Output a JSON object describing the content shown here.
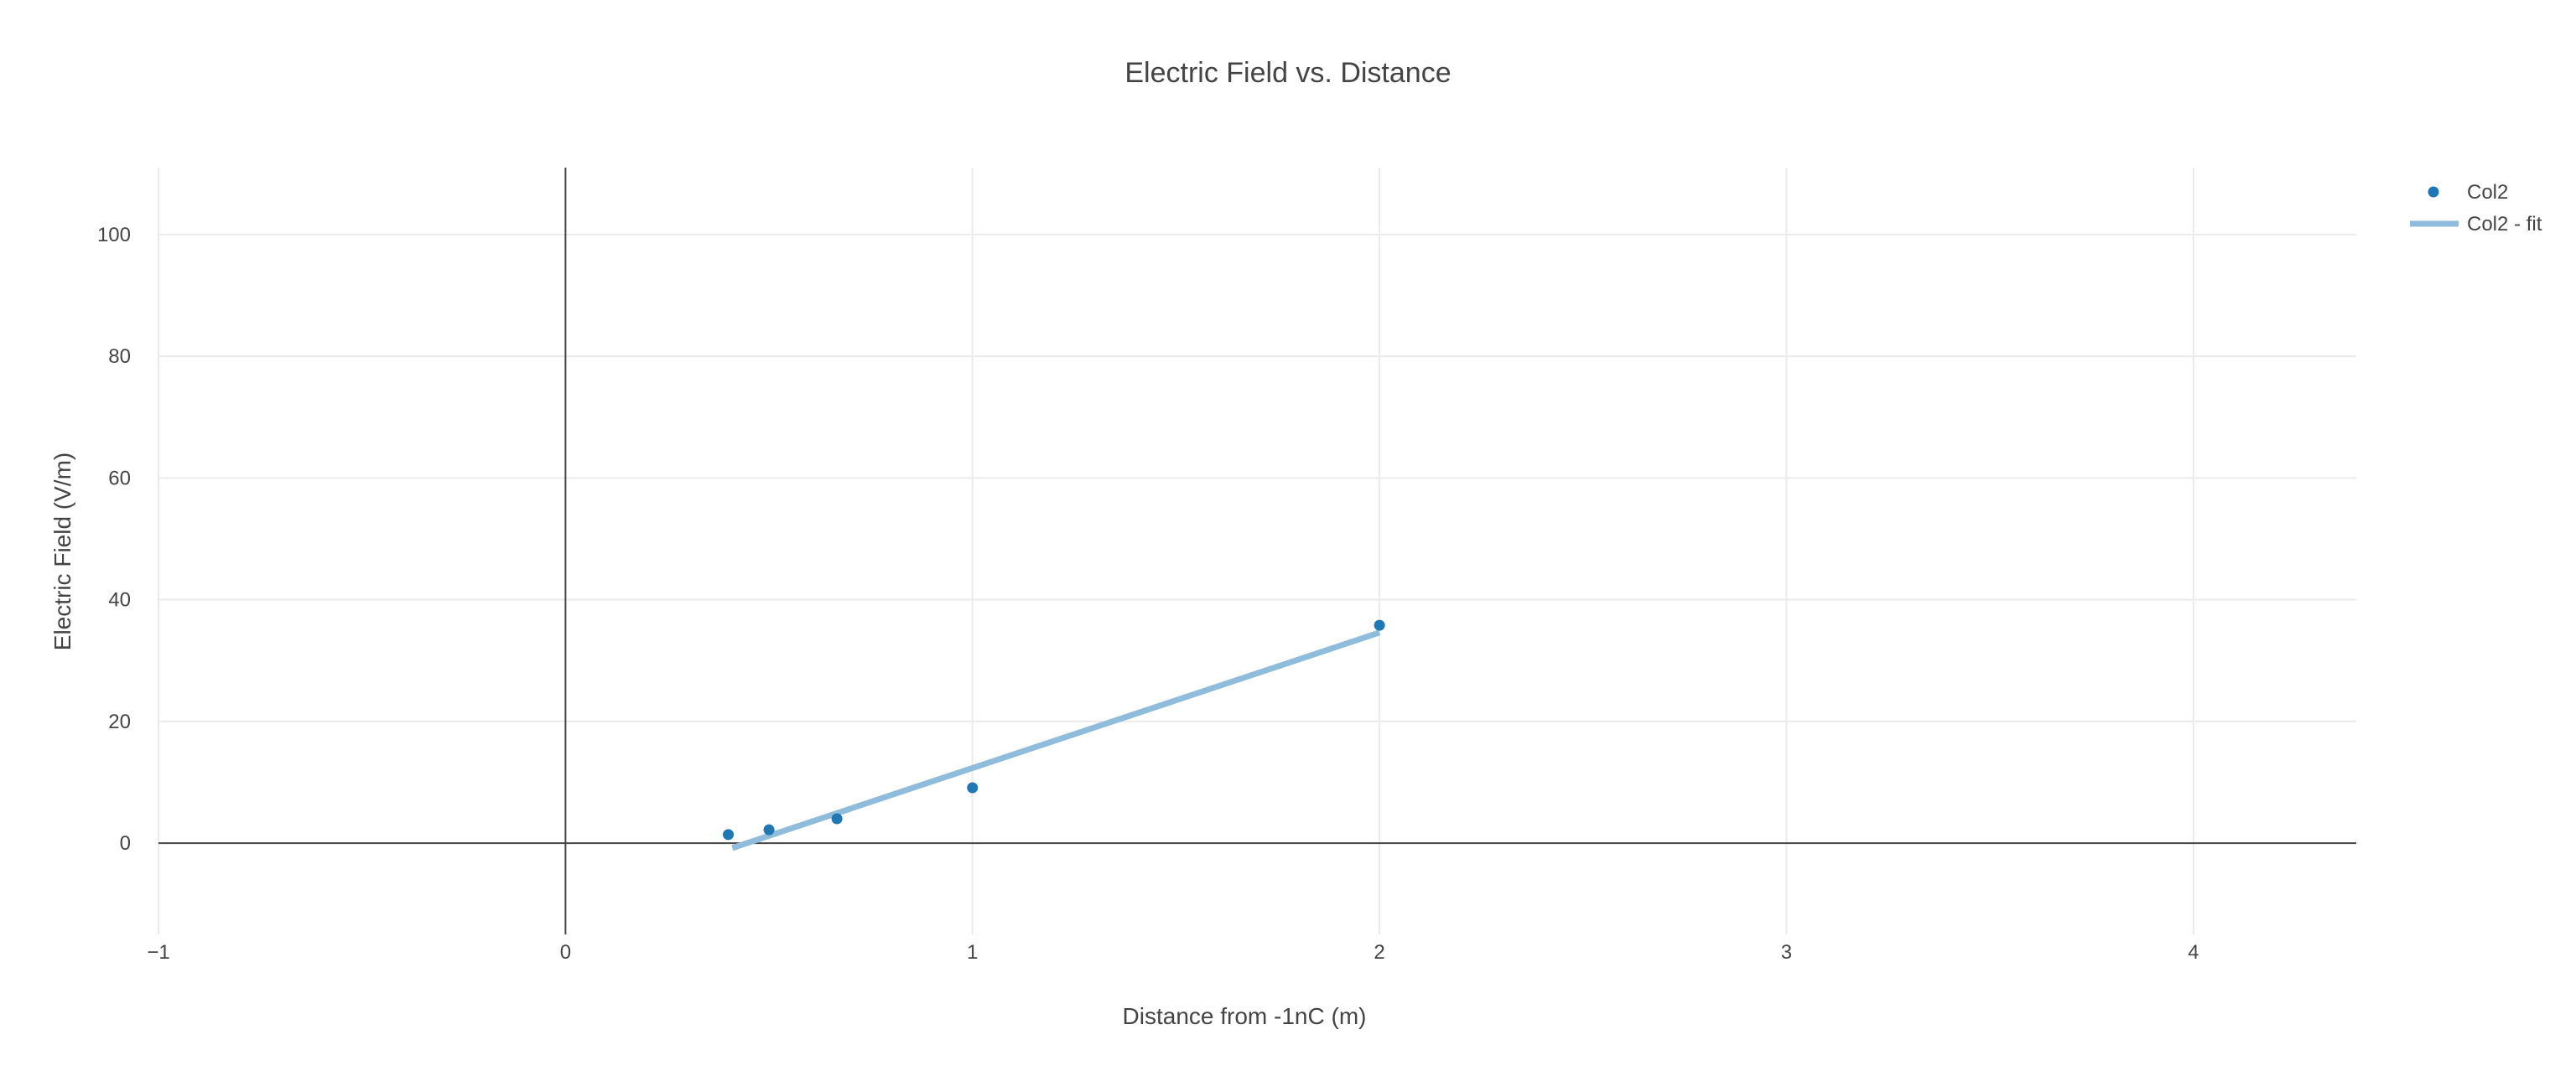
{
  "chart_data": {
    "type": "scatter",
    "title": "Electric Field vs. Distance",
    "xlabel": "Distance from -1nC (m)",
    "ylabel": "Electric Field (V/m)",
    "xlim": [
      -1,
      4.4
    ],
    "ylim": [
      -15,
      111
    ],
    "x_ticks": [
      -1,
      0,
      1,
      2,
      3,
      4
    ],
    "x_tick_labels": [
      "−1",
      "0",
      "1",
      "2",
      "3",
      "4"
    ],
    "y_ticks": [
      0,
      20,
      40,
      60,
      80,
      100
    ],
    "y_tick_labels": [
      "0",
      "20",
      "40",
      "60",
      "80",
      "100"
    ],
    "grid": true,
    "legend_position": "top-right",
    "series": [
      {
        "name": "Col2",
        "mode": "markers",
        "color": "#1f77b4",
        "x": [
          0.4,
          0.5,
          0.667,
          1.0,
          2.0
        ],
        "y": [
          1.4,
          2.2,
          4.0,
          9.1,
          35.8
        ]
      },
      {
        "name": "Col2 - fit",
        "mode": "lines",
        "color": "#8fbcdb",
        "x": [
          0.41,
          2.0
        ],
        "y": [
          -0.8,
          34.6
        ]
      }
    ]
  }
}
